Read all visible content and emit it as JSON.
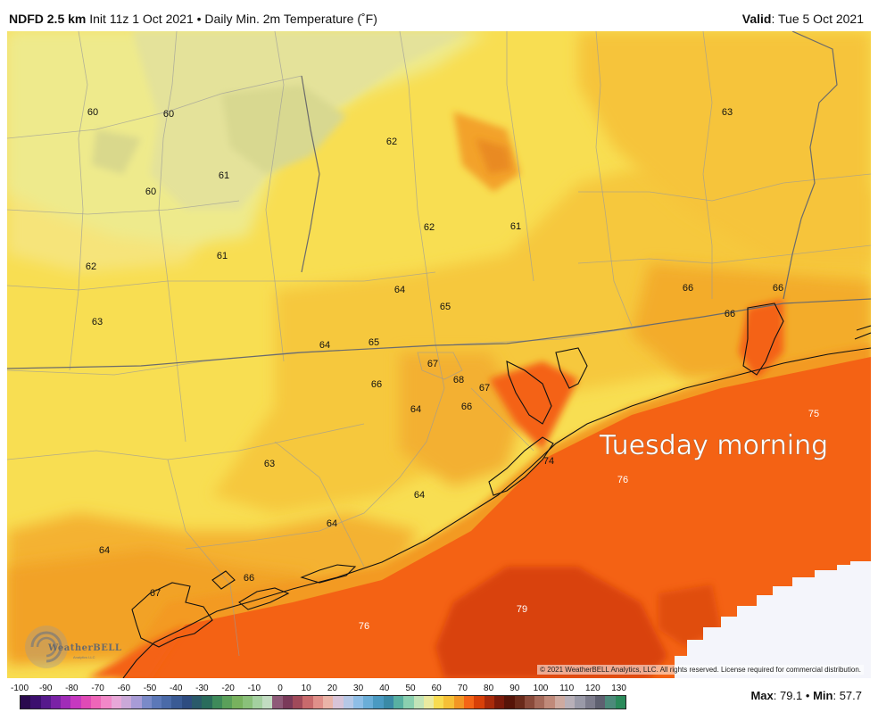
{
  "header": {
    "model": "NDFD 2.5 km",
    "init": "Init 11z 1 Oct 2021",
    "bullet": "•",
    "product": "Daily Min. 2m Temperature (˚F)",
    "valid_label": "Valid",
    "valid_time": ": Tue 5 Oct 2021"
  },
  "map": {
    "annotation": "Tuesday morning",
    "copyright": "© 2021 WeatherBELL Analytics, LLC. All rights reserved. License required for commercial distribution.",
    "logo_text": "WeatherBELL",
    "logo_sub": "Analytics LLC",
    "colors": {
      "cool_yellow": "#e8e79a",
      "yellow": "#f8de52",
      "gold": "#f6c43a",
      "orange": "#f39a24",
      "deep_orange": "#f46214",
      "red_orange": "#d94308",
      "no_data": "#f4f5fb"
    },
    "labels": [
      {
        "v": "60",
        "light": false
      },
      {
        "v": "60",
        "light": false
      },
      {
        "v": "62",
        "light": false
      },
      {
        "v": "63",
        "light": false
      },
      {
        "v": "61",
        "light": false
      },
      {
        "v": "60",
        "light": false
      },
      {
        "v": "62",
        "light": false
      },
      {
        "v": "61",
        "light": false
      },
      {
        "v": "62",
        "light": false
      },
      {
        "v": "61",
        "light": false
      },
      {
        "v": "64",
        "light": false
      },
      {
        "v": "65",
        "light": false
      },
      {
        "v": "66",
        "light": false
      },
      {
        "v": "66",
        "light": false
      },
      {
        "v": "66",
        "light": false
      },
      {
        "v": "63",
        "light": false
      },
      {
        "v": "64",
        "light": false
      },
      {
        "v": "65",
        "light": false
      },
      {
        "v": "67",
        "light": false
      },
      {
        "v": "68",
        "light": false
      },
      {
        "v": "67",
        "light": false
      },
      {
        "v": "66",
        "light": false
      },
      {
        "v": "64",
        "light": false
      },
      {
        "v": "66",
        "light": false
      },
      {
        "v": "75",
        "light": true
      },
      {
        "v": "74",
        "light": false
      },
      {
        "v": "76",
        "light": true
      },
      {
        "v": "63",
        "light": false
      },
      {
        "v": "64",
        "light": false
      },
      {
        "v": "64",
        "light": false
      },
      {
        "v": "64",
        "light": false
      },
      {
        "v": "66",
        "light": false
      },
      {
        "v": "67",
        "light": false
      },
      {
        "v": "79",
        "light": true
      },
      {
        "v": "76",
        "light": true
      }
    ]
  },
  "scale": {
    "ticks": [
      "-100",
      "-90",
      "-80",
      "-70",
      "-60",
      "-50",
      "-40",
      "-30",
      "-20",
      "-10",
      "0",
      "10",
      "20",
      "30",
      "40",
      "50",
      "60",
      "70",
      "80",
      "90",
      "100",
      "110",
      "120",
      "130"
    ],
    "colors": [
      "#2a0a4e",
      "#3c0f6e",
      "#561a8c",
      "#7a22a6",
      "#a02cb8",
      "#c638c0",
      "#e04ab6",
      "#ee66b8",
      "#f288c8",
      "#e8a8d8",
      "#caa8d8",
      "#a89cd6",
      "#7a8ac8",
      "#5c78b8",
      "#4a6aa8",
      "#3a5a94",
      "#2e4c80",
      "#2a5a6a",
      "#2a6c5c",
      "#3e8a5a",
      "#5aa05a",
      "#78b25e",
      "#8ac07a",
      "#a4d0a0",
      "#c2dcc2",
      "#8e5a78",
      "#7a3a5a",
      "#a04a5a",
      "#c86a6c",
      "#e0908a",
      "#eab4a8",
      "#d8c4d8",
      "#b6c8e6",
      "#8ebee6",
      "#6aaed8",
      "#4a9ac2",
      "#3a8aa6",
      "#58b0a2",
      "#8ad0b0",
      "#c2e4b8",
      "#eaeaa0",
      "#f8dc50",
      "#f6c036",
      "#f29624",
      "#f46416",
      "#d84008",
      "#a82a0a",
      "#7a1a0a",
      "#561408",
      "#6a2a1a",
      "#8a4a3a",
      "#a66a5a",
      "#c08a7a",
      "#ceaaa0",
      "#b8b0b8",
      "#9a9aa8",
      "#7c7c8c",
      "#5e6070",
      "#4c8a7a",
      "#2a8a5a"
    ],
    "max_label": "Max",
    "max_value": ": 79.1",
    "min_label": "Min",
    "min_value": ": 57.7",
    "separator": "•"
  }
}
